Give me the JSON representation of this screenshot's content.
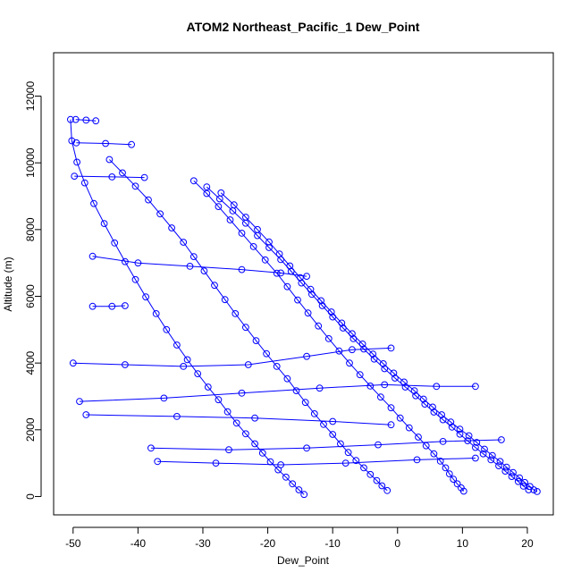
{
  "chart_data": {
    "type": "scatter",
    "title": "ATOM2 Northeast_Pacific_1 Dew_Point",
    "xlabel": "Dew_Point",
    "ylabel": "Altitude (m)",
    "xlim": [
      -53,
      24
    ],
    "ylim": [
      -550,
      13300
    ],
    "x_ticks": [
      -50,
      -40,
      -30,
      -20,
      -10,
      0,
      10,
      20
    ],
    "y_ticks": [
      0,
      2000,
      4000,
      6000,
      8000,
      10000,
      12000
    ],
    "colors": {
      "series": "#0000ff",
      "frame": "#000000",
      "background": "#ffffff"
    },
    "markers": "open-circle-with-lines",
    "grid": false,
    "legend": "none",
    "series": [
      {
        "color": "#0000ff",
        "points": [
          [
            21.5,
            150
          ],
          [
            21.0,
            200
          ],
          [
            20.4,
            300
          ],
          [
            19.6,
            420
          ],
          [
            18.8,
            560
          ],
          [
            17.8,
            720
          ],
          [
            16.8,
            880
          ],
          [
            15.8,
            1050
          ],
          [
            14.6,
            1230
          ],
          [
            13.4,
            1420
          ],
          [
            12.2,
            1620
          ],
          [
            11.0,
            1820
          ],
          [
            9.6,
            2020
          ],
          [
            8.2,
            2230
          ],
          [
            6.8,
            2450
          ],
          [
            5.4,
            2680
          ],
          [
            4.0,
            2920
          ],
          [
            2.6,
            3170
          ],
          [
            1.0,
            3430
          ],
          [
            -0.6,
            3700
          ],
          [
            -2.2,
            3980
          ],
          [
            -3.8,
            4270
          ],
          [
            -5.4,
            4570
          ],
          [
            -7.0,
            4880
          ],
          [
            -8.6,
            5200
          ],
          [
            -10.2,
            5530
          ],
          [
            -11.8,
            5870
          ],
          [
            -13.4,
            6210
          ],
          [
            -15.0,
            6560
          ],
          [
            -16.6,
            6910
          ],
          [
            -18.2,
            7270
          ],
          [
            -19.8,
            7630
          ],
          [
            -21.6,
            8000
          ],
          [
            -23.4,
            8370
          ],
          [
            -25.2,
            8740
          ],
          [
            -27.2,
            9100
          ]
        ]
      },
      {
        "color": "#0000ff",
        "points": [
          [
            20.2,
            200
          ],
          [
            19.4,
            310
          ],
          [
            18.6,
            450
          ],
          [
            17.6,
            600
          ],
          [
            16.6,
            760
          ],
          [
            15.6,
            920
          ],
          [
            14.4,
            1100
          ],
          [
            13.2,
            1280
          ],
          [
            12.0,
            1470
          ],
          [
            10.8,
            1670
          ],
          [
            9.6,
            1870
          ],
          [
            8.4,
            2080
          ],
          [
            7.0,
            2300
          ],
          [
            5.6,
            2530
          ],
          [
            4.2,
            2770
          ],
          [
            2.8,
            3020
          ],
          [
            1.2,
            3280
          ],
          [
            -0.4,
            3550
          ],
          [
            -2.0,
            3830
          ],
          [
            -3.6,
            4120
          ],
          [
            -5.2,
            4420
          ],
          [
            -6.8,
            4730
          ],
          [
            -8.4,
            5050
          ],
          [
            -10.0,
            5380
          ],
          [
            -11.6,
            5720
          ],
          [
            -13.2,
            6060
          ],
          [
            -14.8,
            6400
          ],
          [
            -16.4,
            6750
          ],
          [
            -18.0,
            7100
          ],
          [
            -19.8,
            7460
          ],
          [
            -21.6,
            7820
          ],
          [
            -23.4,
            8190
          ],
          [
            -25.4,
            8560
          ],
          [
            -27.4,
            8920
          ],
          [
            -29.4,
            9280
          ]
        ]
      },
      {
        "color": "#0000ff",
        "points": [
          [
            10.2,
            160
          ],
          [
            9.8,
            260
          ],
          [
            9.2,
            380
          ],
          [
            8.6,
            520
          ],
          [
            8.0,
            680
          ],
          [
            7.4,
            860
          ],
          [
            6.6,
            1060
          ],
          [
            5.6,
            1280
          ],
          [
            4.4,
            1520
          ],
          [
            3.2,
            1780
          ],
          [
            1.8,
            2060
          ],
          [
            0.4,
            2350
          ],
          [
            -1.0,
            2660
          ],
          [
            -2.6,
            2980
          ],
          [
            -4.2,
            3310
          ],
          [
            -5.8,
            3650
          ],
          [
            -7.4,
            4000
          ],
          [
            -9.0,
            4360
          ],
          [
            -10.6,
            4730
          ],
          [
            -12.2,
            5110
          ],
          [
            -13.8,
            5500
          ],
          [
            -15.4,
            5890
          ],
          [
            -17.0,
            6290
          ],
          [
            -18.6,
            6690
          ],
          [
            -20.4,
            7090
          ],
          [
            -22.2,
            7490
          ],
          [
            -24.0,
            7890
          ],
          [
            -25.8,
            8290
          ],
          [
            -27.6,
            8690
          ],
          [
            -29.4,
            9080
          ],
          [
            -31.4,
            9460
          ]
        ]
      },
      {
        "color": "#0000ff",
        "points": [
          [
            -1.6,
            180
          ],
          [
            -2.4,
            320
          ],
          [
            -3.2,
            480
          ],
          [
            -4.2,
            660
          ],
          [
            -5.2,
            860
          ],
          [
            -6.4,
            1080
          ],
          [
            -7.6,
            1320
          ],
          [
            -8.8,
            1580
          ],
          [
            -10.0,
            1860
          ],
          [
            -11.4,
            2160
          ],
          [
            -12.8,
            2480
          ],
          [
            -14.2,
            2820
          ],
          [
            -15.6,
            3170
          ],
          [
            -17.0,
            3530
          ],
          [
            -18.6,
            3900
          ],
          [
            -20.2,
            4280
          ],
          [
            -21.8,
            4670
          ],
          [
            -23.4,
            5070
          ],
          [
            -25.0,
            5480
          ],
          [
            -26.6,
            5900
          ],
          [
            -28.2,
            6330
          ],
          [
            -29.8,
            6760
          ],
          [
            -31.4,
            7190
          ],
          [
            -33.0,
            7620
          ],
          [
            -34.8,
            8050
          ],
          [
            -36.6,
            8470
          ],
          [
            -38.4,
            8890
          ],
          [
            -40.4,
            9300
          ],
          [
            -42.4,
            9700
          ],
          [
            -44.4,
            10100
          ]
        ]
      },
      {
        "color": "#0000ff",
        "points": [
          [
            -14.4,
            60
          ],
          [
            -15.2,
            200
          ],
          [
            -16.2,
            380
          ],
          [
            -17.2,
            580
          ],
          [
            -18.4,
            800
          ],
          [
            -19.6,
            1040
          ],
          [
            -20.8,
            1300
          ],
          [
            -22.0,
            1580
          ],
          [
            -23.4,
            1880
          ],
          [
            -24.8,
            2200
          ],
          [
            -26.2,
            2540
          ],
          [
            -27.6,
            2900
          ],
          [
            -29.2,
            3280
          ],
          [
            -30.8,
            3680
          ],
          [
            -32.4,
            4100
          ],
          [
            -34.0,
            4540
          ],
          [
            -35.6,
            5000
          ],
          [
            -37.2,
            5480
          ],
          [
            -38.8,
            5980
          ],
          [
            -40.4,
            6500
          ],
          [
            -42.0,
            7040
          ],
          [
            -43.6,
            7600
          ],
          [
            -45.2,
            8180
          ],
          [
            -46.8,
            8780
          ],
          [
            -48.2,
            9400
          ],
          [
            -49.4,
            10020
          ],
          [
            -50.2,
            10660
          ],
          [
            -50.4,
            11300
          ]
        ]
      },
      {
        "color": "#0000ff",
        "points": [
          [
            -49.0,
            2850
          ],
          [
            -36.0,
            2950
          ],
          [
            -24.0,
            3100
          ],
          [
            -12.0,
            3250
          ],
          [
            -2.0,
            3350
          ],
          [
            6.0,
            3300
          ],
          [
            12.0,
            3300
          ]
        ]
      },
      {
        "color": "#0000ff",
        "points": [
          [
            -48.0,
            2450
          ],
          [
            -34.0,
            2400
          ],
          [
            -22.0,
            2350
          ],
          [
            -10.0,
            2250
          ],
          [
            -1.0,
            2150
          ]
        ]
      },
      {
        "color": "#0000ff",
        "points": [
          [
            -37.0,
            1050
          ],
          [
            -28.0,
            1000
          ],
          [
            -18.0,
            950
          ],
          [
            -8.0,
            1000
          ],
          [
            3.0,
            1100
          ],
          [
            12.0,
            1150
          ]
        ]
      },
      {
        "color": "#0000ff",
        "points": [
          [
            -38.0,
            1450
          ],
          [
            -26.0,
            1400
          ],
          [
            -14.0,
            1450
          ],
          [
            -3.0,
            1550
          ],
          [
            7.0,
            1650
          ],
          [
            16.0,
            1700
          ]
        ]
      },
      {
        "color": "#0000ff",
        "points": [
          [
            -47.0,
            5700
          ],
          [
            -44.0,
            5700
          ],
          [
            -42.0,
            5720
          ]
        ]
      },
      {
        "color": "#0000ff",
        "points": [
          [
            -50.0,
            4000
          ],
          [
            -42.0,
            3950
          ],
          [
            -33.0,
            3900
          ],
          [
            -23.0,
            3950
          ],
          [
            -14.0,
            4200
          ],
          [
            -7.0,
            4400
          ],
          [
            -1.0,
            4450
          ]
        ]
      },
      {
        "color": "#0000ff",
        "points": [
          [
            -47.0,
            7200
          ],
          [
            -40.0,
            7000
          ],
          [
            -32.0,
            6900
          ],
          [
            -24.0,
            6800
          ],
          [
            -18.0,
            6700
          ],
          [
            -14.0,
            6600
          ]
        ]
      },
      {
        "color": "#0000ff",
        "points": [
          [
            -49.5,
            10600
          ],
          [
            -45.0,
            10580
          ],
          [
            -41.0,
            10550
          ]
        ]
      },
      {
        "color": "#0000ff",
        "points": [
          [
            -49.8,
            9600
          ],
          [
            -44.0,
            9580
          ],
          [
            -39.0,
            9560
          ]
        ]
      },
      {
        "color": "#0000ff",
        "points": [
          [
            -49.6,
            11300
          ],
          [
            -48.0,
            11280
          ],
          [
            -46.5,
            11260
          ]
        ]
      }
    ]
  }
}
